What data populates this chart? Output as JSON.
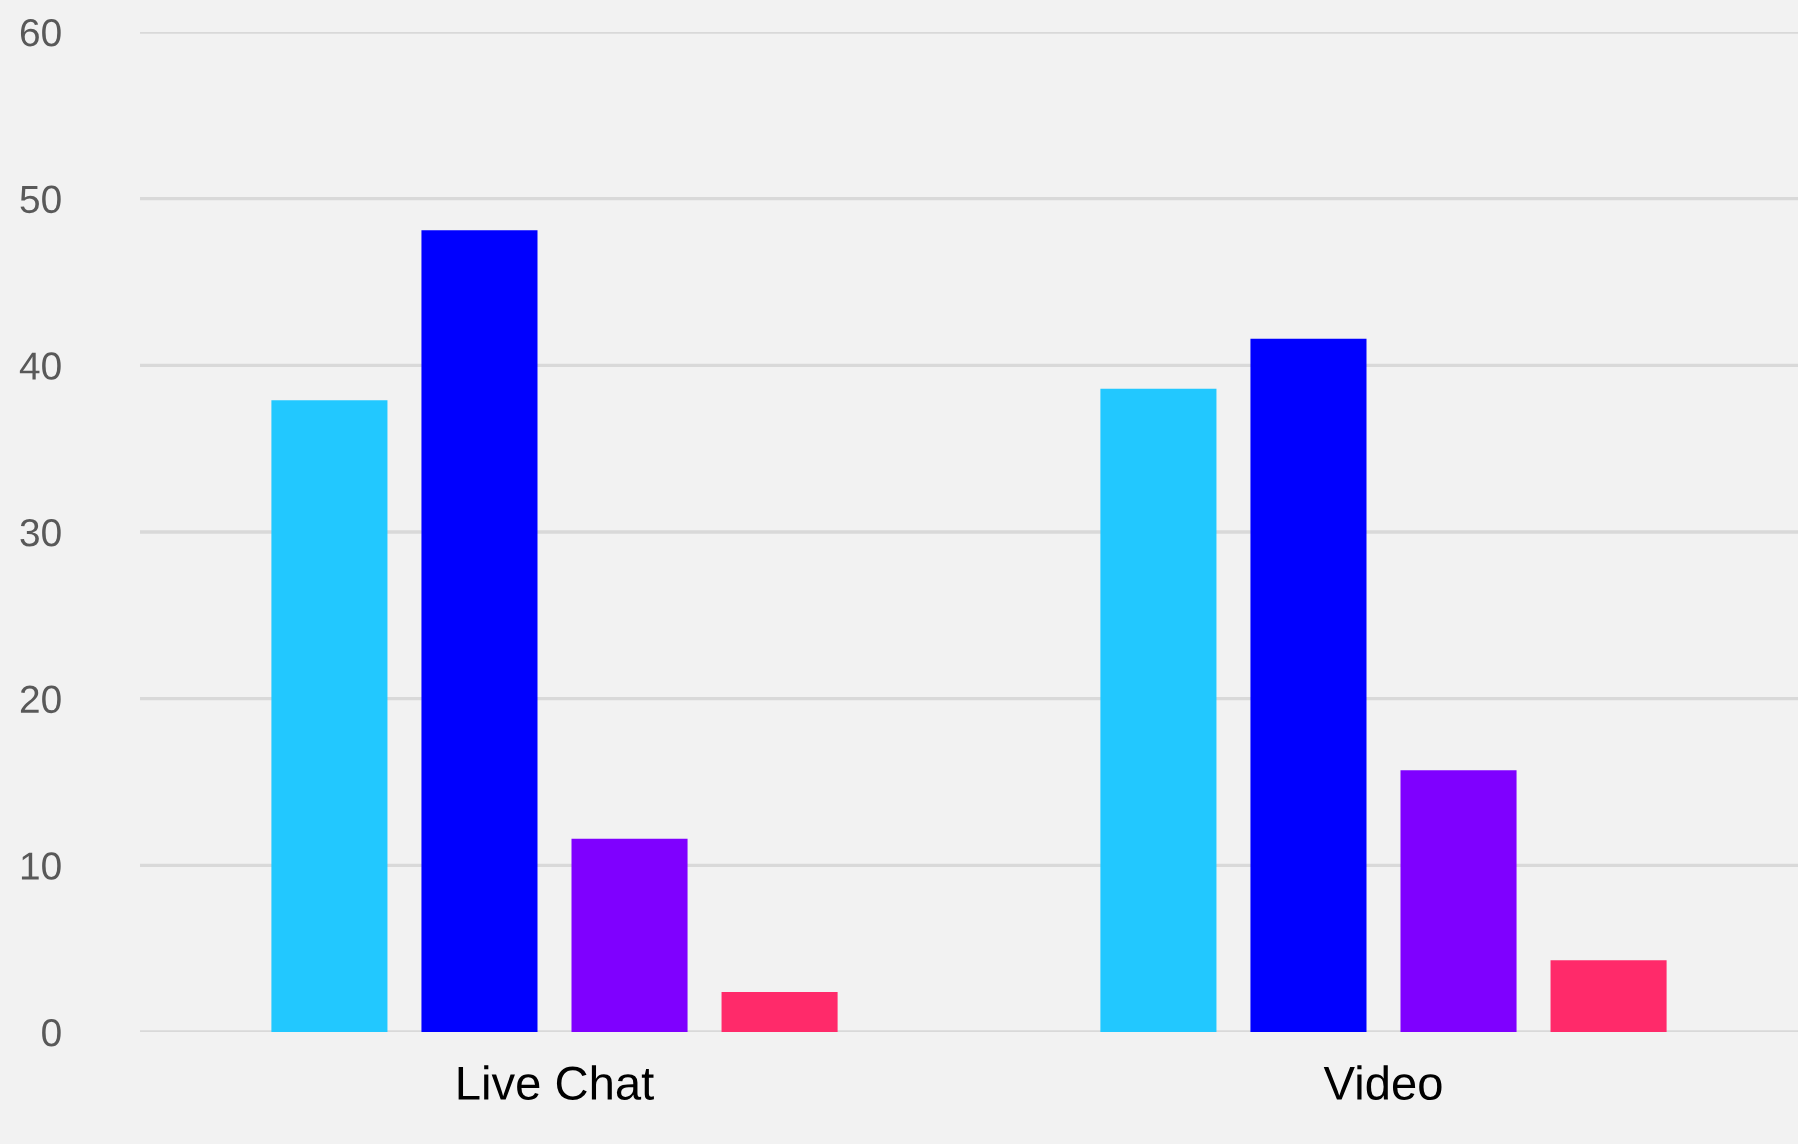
{
  "chart_data": {
    "type": "bar",
    "categories": [
      "Live Chat",
      "Video"
    ],
    "series": [
      {
        "color": "#22c8ff",
        "values": [
          37.9,
          38.6
        ]
      },
      {
        "color": "#0000ff",
        "values": [
          48.1,
          41.6
        ]
      },
      {
        "color": "#7f00ff",
        "values": [
          11.6,
          15.7
        ]
      },
      {
        "color": "#ff2a6a",
        "values": [
          2.4,
          4.3
        ]
      }
    ],
    "ylim": [
      0,
      60
    ],
    "yticks": [
      0,
      10,
      20,
      30,
      40,
      50,
      60
    ],
    "grid": "y"
  }
}
